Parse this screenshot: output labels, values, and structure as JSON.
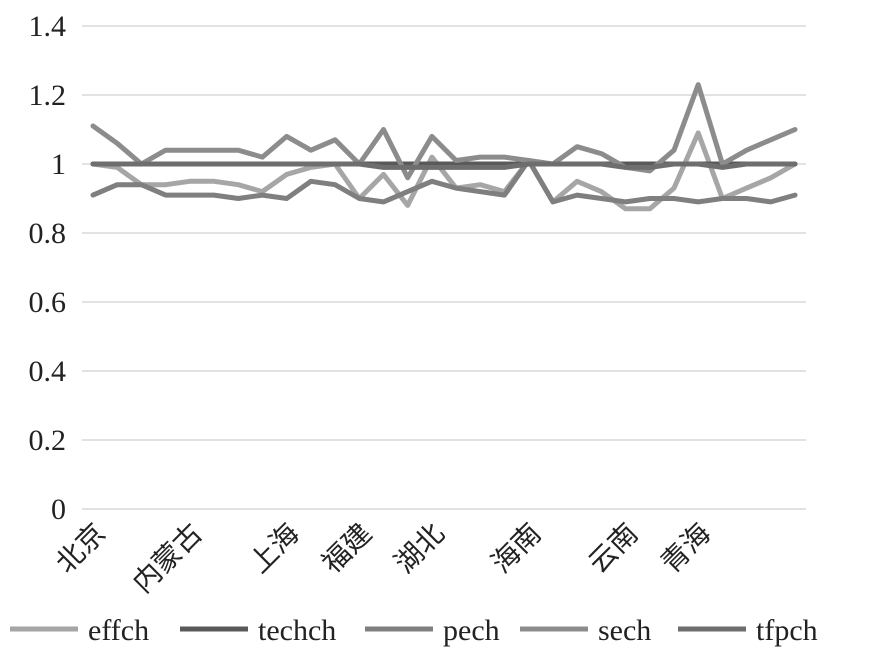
{
  "chart_data": {
    "type": "line",
    "title": "",
    "xlabel": "",
    "ylabel": "",
    "ylim": [
      0,
      1.4
    ],
    "yticks": [
      "0",
      "0.2",
      "0.4",
      "0.6",
      "0.8",
      "1",
      "1.2",
      "1.4"
    ],
    "grid": true,
    "legend_position": "bottom",
    "point_count": 30,
    "x_labels": [
      {
        "index": 0,
        "label": "北京"
      },
      {
        "index": 4,
        "label": "内蒙古"
      },
      {
        "index": 8,
        "label": "上海"
      },
      {
        "index": 11,
        "label": "福建"
      },
      {
        "index": 14,
        "label": "湖北"
      },
      {
        "index": 18,
        "label": "海南"
      },
      {
        "index": 22,
        "label": "云南"
      },
      {
        "index": 25,
        "label": "青海"
      }
    ],
    "series": [
      {
        "name": "effch",
        "color": "#a6a6a6",
        "values": [
          1.0,
          0.99,
          0.94,
          0.94,
          0.95,
          0.95,
          0.94,
          0.92,
          0.97,
          0.99,
          1.0,
          0.9,
          0.97,
          0.88,
          1.02,
          0.93,
          0.94,
          0.92,
          1.01,
          0.89,
          0.95,
          0.92,
          0.87,
          0.87,
          0.93,
          1.09,
          0.9,
          0.93,
          0.96,
          1.0
        ]
      },
      {
        "name": "techch",
        "color": "#595959",
        "values": [
          1.0,
          1.0,
          1.0,
          1.0,
          1.0,
          1.0,
          1.0,
          1.0,
          1.0,
          1.0,
          1.0,
          1.0,
          1.0,
          1.0,
          1.0,
          1.0,
          1.0,
          1.0,
          1.0,
          1.0,
          1.0,
          1.0,
          1.0,
          1.0,
          1.0,
          1.0,
          1.0,
          1.0,
          1.0,
          1.0
        ]
      },
      {
        "name": "pech",
        "color": "#7f7f7f",
        "values": [
          0.91,
          0.94,
          0.94,
          0.91,
          0.91,
          0.91,
          0.9,
          0.91,
          0.9,
          0.95,
          0.94,
          0.9,
          0.89,
          0.92,
          0.95,
          0.93,
          0.92,
          0.91,
          1.01,
          0.89,
          0.91,
          0.9,
          0.89,
          0.9,
          0.9,
          0.89,
          0.9,
          0.9,
          0.89,
          0.91
        ]
      },
      {
        "name": "sech",
        "color": "#8c8c8c",
        "values": [
          1.11,
          1.06,
          1.0,
          1.04,
          1.04,
          1.04,
          1.04,
          1.02,
          1.08,
          1.04,
          1.07,
          1.0,
          1.1,
          0.96,
          1.08,
          1.01,
          1.02,
          1.02,
          1.01,
          1.0,
          1.05,
          1.03,
          0.99,
          0.98,
          1.04,
          1.23,
          1.0,
          1.04,
          1.07,
          1.1
        ]
      },
      {
        "name": "tfpch",
        "color": "#6e6e6e",
        "values": [
          1.0,
          1.0,
          1.0,
          1.0,
          1.0,
          1.0,
          1.0,
          1.0,
          1.0,
          1.0,
          1.0,
          1.0,
          0.99,
          0.99,
          0.99,
          0.99,
          0.99,
          0.99,
          1.0,
          1.0,
          1.0,
          1.0,
          0.99,
          0.99,
          1.0,
          1.0,
          0.99,
          1.0,
          1.0,
          1.0
        ]
      }
    ]
  }
}
